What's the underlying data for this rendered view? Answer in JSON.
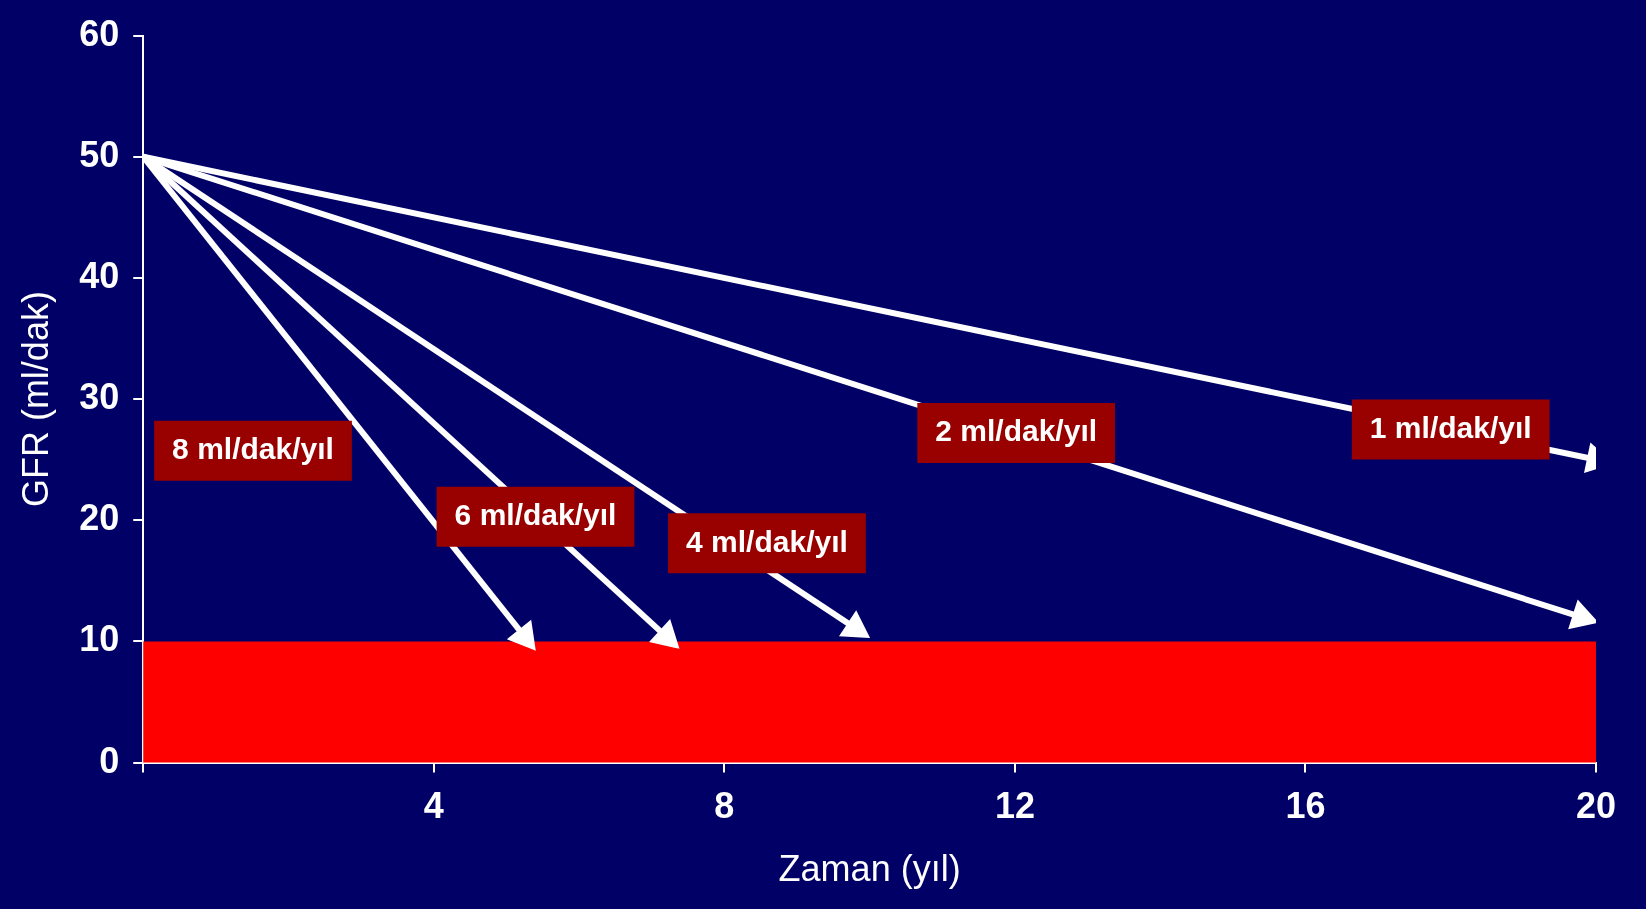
{
  "chart_data": {
    "type": "line",
    "xlabel": "Zaman (yıl)",
    "ylabel": "GFR (ml/dak)",
    "xlim": [
      0,
      20
    ],
    "ylim": [
      0,
      60
    ],
    "xticks": [
      {
        "value": 0,
        "label": null
      },
      4,
      8,
      12,
      16,
      20
    ],
    "yticks": [
      0,
      10,
      20,
      30,
      40,
      50,
      60
    ],
    "grid": false,
    "legend": false,
    "marker": "triangle",
    "line_style": "solid",
    "series": [
      {
        "name": "1 ml/dak/yıl",
        "color": "#ffffff",
        "x": [
          0,
          20
        ],
        "values": [
          50,
          25
        ]
      },
      {
        "name": "2 ml/dak/yıl",
        "color": "#ffffff",
        "x": [
          0,
          19.8
        ],
        "values": [
          50,
          12
        ]
      },
      {
        "name": "4 ml/dak/yıl",
        "color": "#ffffff",
        "x": [
          0,
          9.8
        ],
        "values": [
          50,
          11.1
        ]
      },
      {
        "name": "6 ml/dak/yıl",
        "color": "#ffffff",
        "x": [
          0,
          7.2
        ],
        "values": [
          50,
          10.4
        ]
      },
      {
        "name": "8 ml/dak/yıl",
        "color": "#ffffff",
        "x": [
          0,
          5.25
        ],
        "values": [
          50,
          10.4
        ]
      }
    ],
    "bands": [
      {
        "axis": "y",
        "from": 0,
        "to": 10,
        "color": "#ff0000"
      }
    ]
  }
}
